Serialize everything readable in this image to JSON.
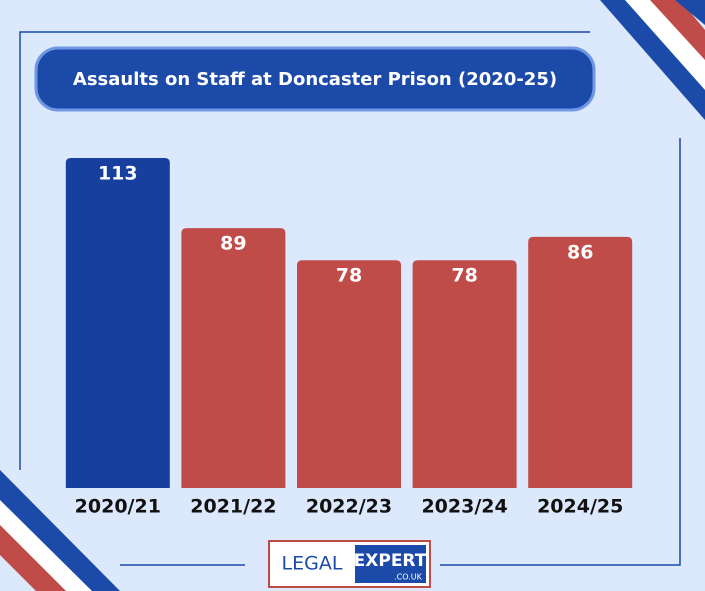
{
  "chart_data": {
    "type": "bar",
    "title": "Assaults on Staff at Doncaster Prison (2020-25)",
    "categories": [
      "2020/21",
      "2021/22",
      "2022/23",
      "2023/24",
      "2024/25"
    ],
    "values": [
      113,
      89,
      78,
      78,
      86
    ],
    "colors": [
      "#17409e",
      "#c04c4a",
      "#c04c4a",
      "#c04c4a",
      "#c04c4a"
    ]
  },
  "logo": {
    "left": "LEGAL",
    "right": "EXPERT",
    "domain": ".CO.UK"
  }
}
